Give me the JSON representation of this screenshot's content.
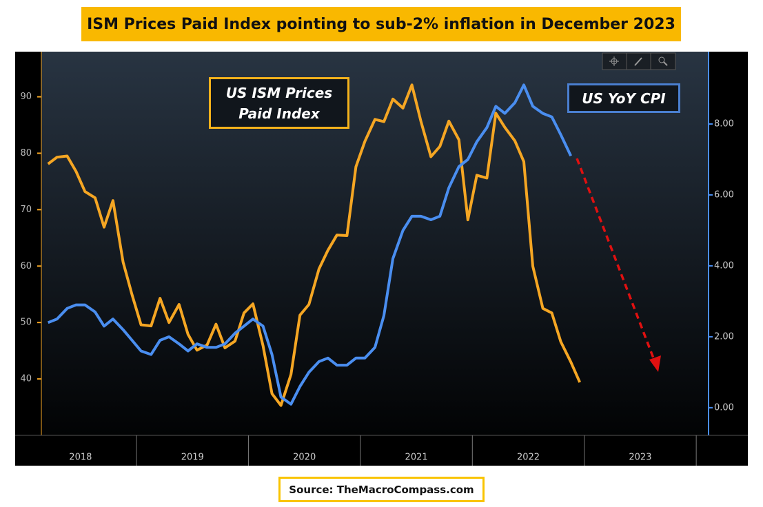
{
  "chart_data": {
    "type": "line",
    "title": "ISM Prices Paid Index pointing to sub-2% inflation in December 2023",
    "source": "Source: TheMacroCompass.com",
    "x": [
      2018.21,
      2018.29,
      2018.38,
      2018.46,
      2018.54,
      2018.63,
      2018.71,
      2018.79,
      2018.88,
      2018.96,
      2019.04,
      2019.13,
      2019.21,
      2019.29,
      2019.38,
      2019.46,
      2019.54,
      2019.63,
      2019.71,
      2019.79,
      2019.88,
      2019.96,
      2020.04,
      2020.13,
      2020.21,
      2020.29,
      2020.38,
      2020.46,
      2020.54,
      2020.63,
      2020.71,
      2020.79,
      2020.88,
      2020.96,
      2021.04,
      2021.13,
      2021.21,
      2021.29,
      2021.38,
      2021.46,
      2021.54,
      2021.63,
      2021.71,
      2021.79,
      2021.88,
      2021.96,
      2022.04,
      2022.13,
      2022.21,
      2022.29,
      2022.38,
      2022.46,
      2022.54,
      2022.63,
      2022.71,
      2022.79,
      2022.88,
      2022.96
    ],
    "series": [
      {
        "name": "US ISM Prices Paid Index",
        "color": "#f5a623",
        "values": [
          78.1,
          79.3,
          79.5,
          76.8,
          73.2,
          72.1,
          66.9,
          71.6,
          60.7,
          54.9,
          49.6,
          49.4,
          54.3,
          50.0,
          53.2,
          47.9,
          45.1,
          46.0,
          49.7,
          45.5,
          46.7,
          51.7,
          53.3,
          45.9,
          37.4,
          35.3,
          40.8,
          51.3,
          53.2,
          59.5,
          62.8,
          65.5,
          65.4,
          77.6,
          82.1,
          86.0,
          85.6,
          89.6,
          88.0,
          92.1,
          85.7,
          79.4,
          81.2,
          85.7,
          82.4,
          68.2,
          76.1,
          75.6,
          87.1,
          84.6,
          82.2,
          78.5,
          60.0,
          52.5,
          51.7,
          46.6,
          43.0,
          39.4
        ]
      },
      {
        "name": "US YoY CPI",
        "color": "#4a8ef0",
        "axis": "y2",
        "values": [
          2.4,
          2.5,
          2.8,
          2.9,
          2.9,
          2.7,
          2.3,
          2.5,
          2.2,
          1.9,
          1.6,
          1.5,
          1.9,
          2.0,
          1.8,
          1.6,
          1.8,
          1.7,
          1.7,
          1.8,
          2.1,
          2.3,
          2.5,
          2.3,
          1.5,
          0.3,
          0.1,
          0.6,
          1.0,
          1.3,
          1.4,
          1.2,
          1.2,
          1.4,
          1.4,
          1.7,
          2.6,
          4.2,
          5.0,
          5.4,
          5.4,
          5.3,
          5.4,
          6.2,
          6.8,
          7.0,
          7.5,
          7.9,
          8.5,
          8.3,
          8.6,
          9.1,
          8.5,
          8.3,
          8.2,
          7.7,
          7.1,
          null
        ]
      }
    ],
    "xlim": [
      2018.15,
      2024.11
    ],
    "xticks": [
      2019,
      2020,
      2021,
      2022,
      2023,
      2024
    ],
    "year_labels": [
      2018,
      2019,
      2020,
      2021,
      2022,
      2023
    ],
    "ylim": [
      30,
      98
    ],
    "yticks": [
      40,
      50,
      60,
      70,
      80,
      90
    ],
    "y2lim": [
      -0.78,
      10.04
    ],
    "y2ticks": [
      {
        "value": 0,
        "label": "0.00"
      },
      {
        "value": 2,
        "label": "2.00"
      },
      {
        "value": 4,
        "label": "4.00"
      },
      {
        "value": 6,
        "label": "6.00"
      },
      {
        "value": 8,
        "label": "8.00"
      }
    ]
  }
}
